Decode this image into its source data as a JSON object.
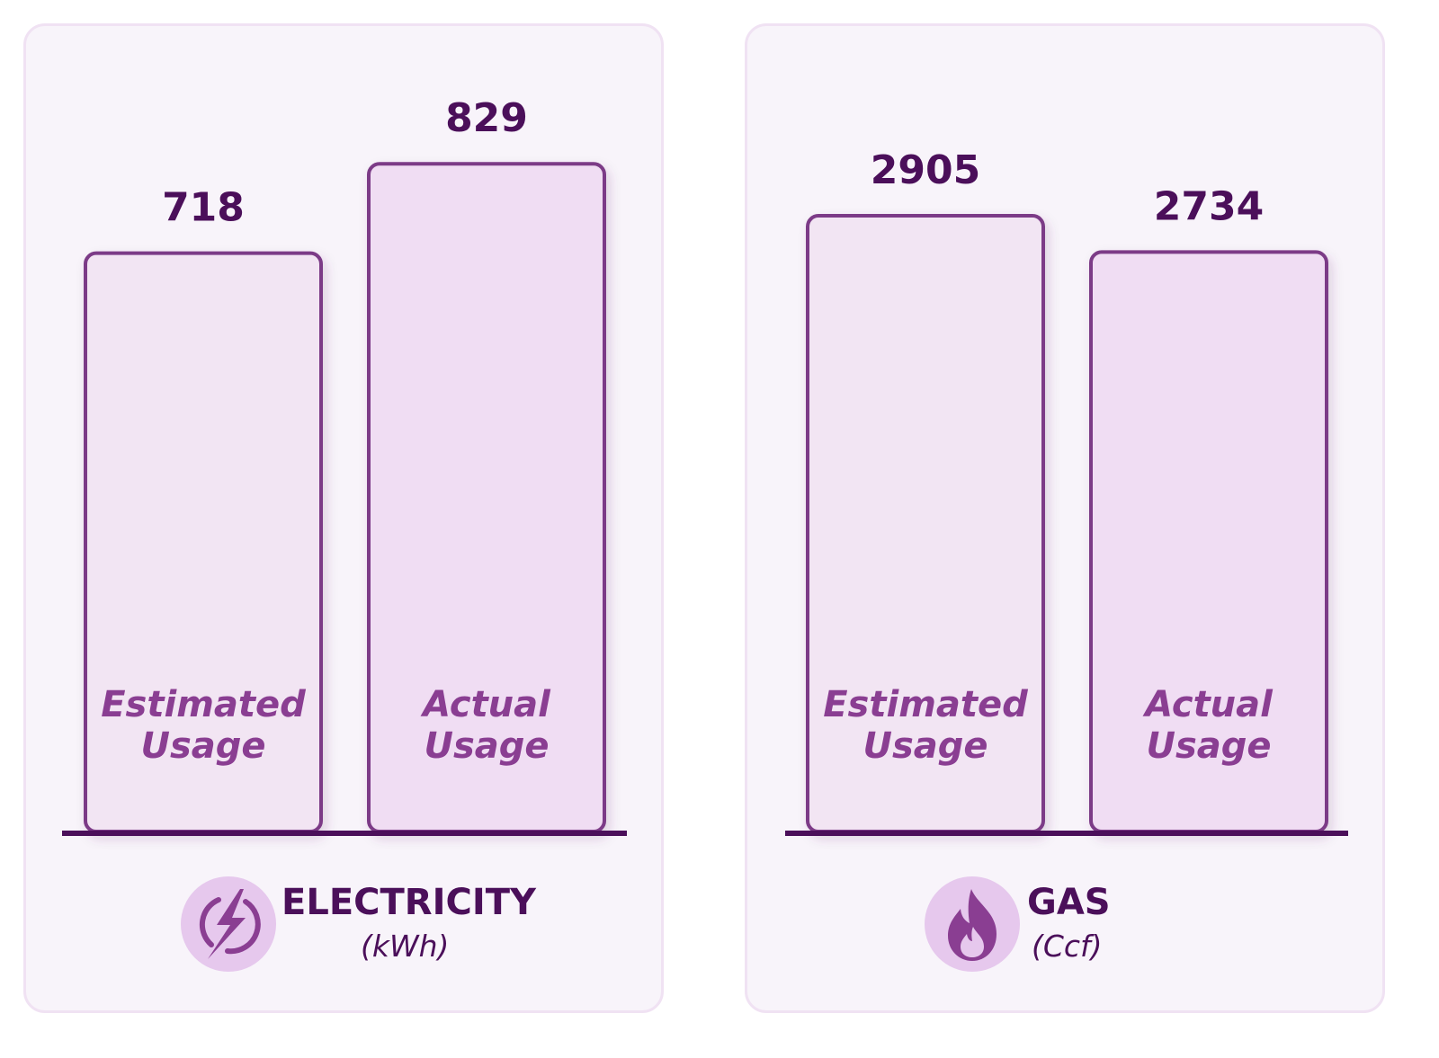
{
  "colors": {
    "panel_bg": "#f8f4fa",
    "panel_border": "#f0e2f3",
    "bar_fill_estimated": "#f2e5f3",
    "bar_fill_actual": "#f0ddf3",
    "bar_stroke": "#7c3a87",
    "baseline": "#4b0f5a",
    "value_text": "#4b0f5a",
    "bar_label_text": "#8a3e92",
    "icon_circle": "#e6c8ed",
    "icon_glyph": "#8a3e92"
  },
  "chart_data": [
    {
      "type": "bar",
      "categories": [
        "Estimated Usage",
        "Actual Usage"
      ],
      "category_lines": [
        [
          "Estimated",
          "Usage"
        ],
        [
          "Actual",
          "Usage"
        ]
      ],
      "values": [
        718,
        829
      ],
      "value_labels": [
        "718",
        "829"
      ],
      "ylim": [
        0,
        1000
      ],
      "grid": false,
      "legend": "none",
      "title": "ELECTRICITY",
      "unit": "(kWh)",
      "icon": "lightning-bolt-icon"
    },
    {
      "type": "bar",
      "categories": [
        "Estimated Usage",
        "Actual Usage"
      ],
      "category_lines": [
        [
          "Estimated",
          "Usage"
        ],
        [
          "Actual",
          "Usage"
        ]
      ],
      "values": [
        2905,
        2734
      ],
      "value_labels": [
        "2905",
        "2734"
      ],
      "ylim": [
        0,
        3800
      ],
      "grid": false,
      "legend": "none",
      "title": "GAS",
      "unit": "(Ccf)",
      "icon": "flame-icon"
    }
  ]
}
